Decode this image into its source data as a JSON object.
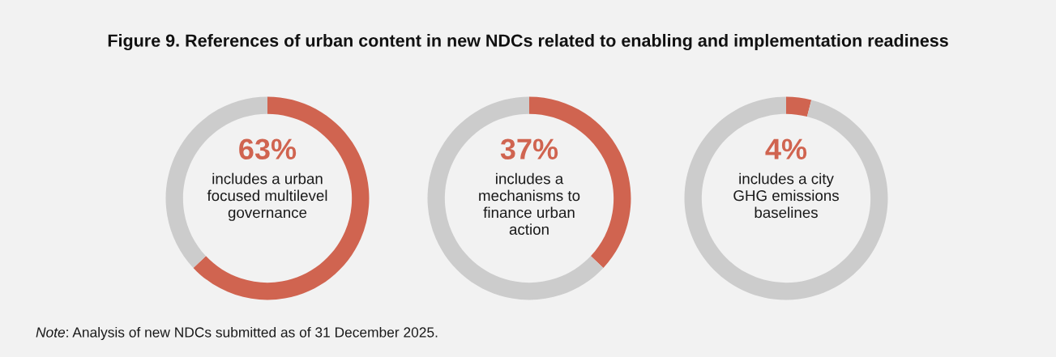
{
  "chart_data": [
    {
      "type": "donut",
      "title": "Figure 9. References of urban content in new NDCs related to enabling and implementation readiness",
      "categories": [
        "includes a urban\nfocused multilevel\ngovernance",
        null
      ],
      "values": [
        63,
        37
      ],
      "colors": [
        "#d06450",
        "#cccccc"
      ],
      "value_labels": [
        "63%",
        null
      ]
    },
    {
      "type": "donut",
      "categories": [
        "includes a\nmechanisms to\nfinance urban\naction",
        null
      ],
      "values": [
        37,
        63
      ],
      "colors": [
        "#d06450",
        "#cccccc"
      ],
      "value_labels": [
        "37%",
        null
      ]
    },
    {
      "type": "donut",
      "categories": [
        "includes a city\nGHG emissions\nbaselines",
        null
      ],
      "values": [
        4,
        96
      ],
      "colors": [
        "#d06450",
        "#cccccc"
      ],
      "value_labels": [
        "4%",
        null
      ],
      "annotations": [
        "Note: Analysis of new NDCs submitted as of 31 December 2025."
      ]
    }
  ]
}
